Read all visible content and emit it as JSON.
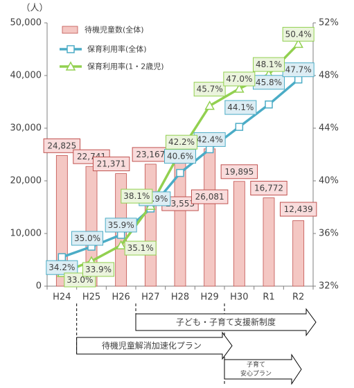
{
  "chart_data": {
    "type": "bar",
    "categories": [
      "H24",
      "H25",
      "H26",
      "H27",
      "H28",
      "H29",
      "H30",
      "R1",
      "R2"
    ],
    "left_axis": {
      "unit_label": "（人）",
      "ylim": [
        0,
        50000
      ],
      "ticks": [
        "0",
        "10,000",
        "20,000",
        "30,000",
        "40,000",
        "50,000"
      ]
    },
    "right_axis": {
      "ylim": [
        32,
        52
      ],
      "ticks": [
        "32%",
        "36%",
        "40%",
        "44%",
        "48%",
        "52%"
      ]
    },
    "series": [
      {
        "name": "待機児童数(全体)",
        "kind": "bar",
        "axis": "left",
        "values": [
          24825,
          22741,
          21371,
          23167,
          23553,
          26081,
          19895,
          16772,
          12439
        ],
        "labels": [
          "24,825",
          "22,741",
          "21,371",
          "23,167",
          "23,553",
          "26,081",
          "19,895",
          "16,772",
          "12,439"
        ]
      },
      {
        "name": "保育利用率(全体)",
        "kind": "line",
        "axis": "right",
        "values": [
          34.2,
          35.0,
          35.9,
          37.9,
          40.6,
          42.4,
          44.1,
          45.8,
          47.7
        ],
        "labels": [
          "34.2%",
          "35.0%",
          "35.9%",
          "37.9%",
          "40.6%",
          "42.4%",
          "44.1%",
          "45.8%",
          "47.7%"
        ]
      },
      {
        "name": "保育利用率(1・2歳児)",
        "kind": "line",
        "axis": "right",
        "values": [
          33.0,
          33.9,
          35.1,
          38.1,
          42.2,
          45.7,
          47.0,
          48.1,
          50.4
        ],
        "labels": [
          "33.0%",
          "33.9%",
          "35.1%",
          "38.1%",
          "42.2%",
          "45.7%",
          "47.0%",
          "48.1%",
          "50.4%"
        ]
      }
    ],
    "grid": false,
    "legend_position": "top-left",
    "annotations": [
      {
        "label": "子ども・子育て支援新制度",
        "from": "H27",
        "to": "R2"
      },
      {
        "label": "待機児童解消加速化プラン",
        "from": "H25",
        "to": "H29"
      },
      {
        "label": "子育て安心プラン",
        "lines": [
          "子育て",
          "安心プラン"
        ],
        "from": "H30",
        "to": "R1"
      }
    ],
    "colors": {
      "bar_fill": "#f4c7c3",
      "bar_stroke": "#c0504d",
      "bar_label_fill": "#f9dcdc",
      "bar_label_stroke": "#c0504d",
      "line_all": "#4bacc6",
      "line_all_label_fill": "#dcedf4",
      "line_all_label_stroke": "#4bacc6",
      "line_12": "#92d050",
      "line_12_label_fill": "#ebf4dd",
      "line_12_label_stroke": "#92d050",
      "axis": "#7f7f7f",
      "text": "#404040"
    }
  }
}
